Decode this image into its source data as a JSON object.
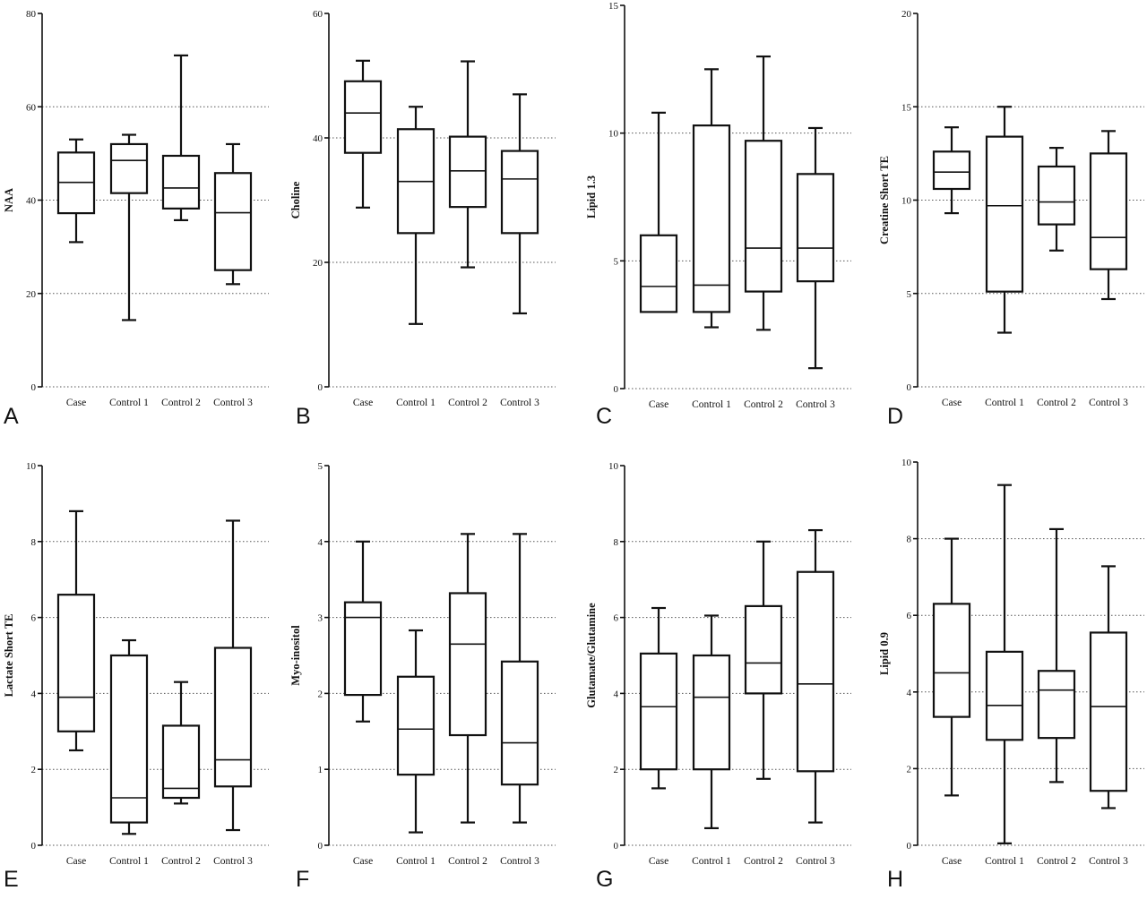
{
  "chart_data": [
    {
      "panel": "A",
      "type": "box",
      "ylabel": "NAA",
      "categories": [
        "Case",
        "Control 1",
        "Control 2",
        "Control 3"
      ],
      "ylim": [
        0,
        80
      ],
      "yticks": [
        0,
        20,
        40,
        60,
        80
      ],
      "gridlines": [
        20,
        40,
        60
      ],
      "boxes": [
        {
          "category": "Case",
          "min": 31,
          "q1": 37.2,
          "median": 43.8,
          "q3": 50.2,
          "max": 53
        },
        {
          "category": "Control 1",
          "min": 14.3,
          "q1": 41.5,
          "median": 48.5,
          "q3": 52,
          "max": 54
        },
        {
          "category": "Control 2",
          "min": 35.7,
          "q1": 38.2,
          "median": 42.6,
          "q3": 49.5,
          "max": 71
        },
        {
          "category": "Control 3",
          "min": 22,
          "q1": 25,
          "median": 37.3,
          "q3": 45.8,
          "max": 52
        }
      ]
    },
    {
      "panel": "B",
      "type": "box",
      "ylabel": "Choline",
      "categories": [
        "Case",
        "Control 1",
        "Control 2",
        "Control 3"
      ],
      "ylim": [
        0,
        60
      ],
      "yticks": [
        0,
        20,
        40,
        60
      ],
      "gridlines": [
        20,
        40
      ],
      "boxes": [
        {
          "category": "Case",
          "min": 28.8,
          "q1": 37.6,
          "median": 44,
          "q3": 49.1,
          "max": 52.4
        },
        {
          "category": "Control 1",
          "min": 10.1,
          "q1": 24.7,
          "median": 33,
          "q3": 41.4,
          "max": 45
        },
        {
          "category": "Control 2",
          "min": 19.2,
          "q1": 28.9,
          "median": 34.7,
          "q3": 40.2,
          "max": 52.3
        },
        {
          "category": "Control 3",
          "min": 11.8,
          "q1": 24.7,
          "median": 33.4,
          "q3": 37.9,
          "max": 47
        }
      ]
    },
    {
      "panel": "C",
      "type": "box",
      "ylabel": "Lipid 1.3",
      "categories": [
        "Case",
        "Control 1",
        "Control 2",
        "Control 3"
      ],
      "ylim": [
        0,
        15
      ],
      "yticks": [
        0,
        5,
        10,
        15
      ],
      "gridlines": [
        5,
        10
      ],
      "boxes": [
        {
          "category": "Case",
          "min": 3,
          "q1": 3,
          "median": 4,
          "q3": 6,
          "max": 10.8
        },
        {
          "category": "Control 1",
          "min": 2.4,
          "q1": 3,
          "median": 4.05,
          "q3": 10.3,
          "max": 12.5
        },
        {
          "category": "Control 2",
          "min": 2.3,
          "q1": 3.8,
          "median": 5.5,
          "q3": 9.7,
          "max": 13
        },
        {
          "category": "Control 3",
          "min": 0.8,
          "q1": 4.2,
          "median": 5.5,
          "q3": 8.4,
          "max": 10.2
        }
      ]
    },
    {
      "panel": "D",
      "type": "box",
      "ylabel": "Creatine Short TE",
      "categories": [
        "Case",
        "Control 1",
        "Control 2",
        "Control 3"
      ],
      "ylim": [
        0,
        20
      ],
      "yticks": [
        0,
        5,
        10,
        15,
        20
      ],
      "gridlines": [
        5,
        10,
        15
      ],
      "boxes": [
        {
          "category": "Case",
          "min": 9.3,
          "q1": 10.6,
          "median": 11.5,
          "q3": 12.6,
          "max": 13.9
        },
        {
          "category": "Control 1",
          "min": 2.9,
          "q1": 5.1,
          "median": 9.7,
          "q3": 13.4,
          "max": 15
        },
        {
          "category": "Control 2",
          "min": 7.3,
          "q1": 8.7,
          "median": 9.9,
          "q3": 11.8,
          "max": 12.8
        },
        {
          "category": "Control 3",
          "min": 4.7,
          "q1": 6.3,
          "median": 8,
          "q3": 12.5,
          "max": 13.7
        }
      ]
    },
    {
      "panel": "E",
      "type": "box",
      "ylabel": "Lactate Short TE",
      "categories": [
        "Case",
        "Control 1",
        "Control 2",
        "Control 3"
      ],
      "ylim": [
        0,
        10
      ],
      "yticks": [
        0,
        2,
        4,
        6,
        8,
        10
      ],
      "gridlines": [
        2,
        4,
        6,
        8
      ],
      "boxes": [
        {
          "category": "Case",
          "min": 2.5,
          "q1": 3,
          "median": 3.9,
          "q3": 6.6,
          "max": 8.8
        },
        {
          "category": "Control 1",
          "min": 0.3,
          "q1": 0.6,
          "median": 1.25,
          "q3": 5,
          "max": 5.4
        },
        {
          "category": "Control 2",
          "min": 1.1,
          "q1": 1.25,
          "median": 1.5,
          "q3": 3.15,
          "max": 4.3
        },
        {
          "category": "Control 3",
          "min": 0.4,
          "q1": 1.55,
          "median": 2.25,
          "q3": 5.2,
          "max": 8.55
        }
      ]
    },
    {
      "panel": "F",
      "type": "box",
      "ylabel": "Myo-inositol",
      "categories": [
        "Case",
        "Control 1",
        "Control 2",
        "Control 3"
      ],
      "ylim": [
        0,
        5
      ],
      "yticks": [
        0,
        1,
        2,
        3,
        4,
        5
      ],
      "gridlines": [
        1,
        2,
        3,
        4
      ],
      "boxes": [
        {
          "category": "Case",
          "min": 1.63,
          "q1": 1.98,
          "median": 3,
          "q3": 3.2,
          "max": 4
        },
        {
          "category": "Control 1",
          "min": 0.17,
          "q1": 0.93,
          "median": 1.53,
          "q3": 2.22,
          "max": 2.83
        },
        {
          "category": "Control 2",
          "min": 0.3,
          "q1": 1.45,
          "median": 2.65,
          "q3": 3.32,
          "max": 4.1
        },
        {
          "category": "Control 3",
          "min": 0.3,
          "q1": 0.8,
          "median": 1.35,
          "q3": 2.42,
          "max": 4.1
        }
      ]
    },
    {
      "panel": "G",
      "type": "box",
      "ylabel": "Glutamate/Glutamine",
      "categories": [
        "Case",
        "Control 1",
        "Control 2",
        "Control 3"
      ],
      "ylim": [
        0,
        10
      ],
      "yticks": [
        0,
        2,
        4,
        6,
        8,
        10
      ],
      "gridlines": [
        2,
        4,
        6,
        8
      ],
      "boxes": [
        {
          "category": "Case",
          "min": 1.5,
          "q1": 2,
          "median": 3.65,
          "q3": 5.05,
          "max": 6.25
        },
        {
          "category": "Control 1",
          "min": 0.45,
          "q1": 2,
          "median": 3.9,
          "q3": 5,
          "max": 6.05
        },
        {
          "category": "Control 2",
          "min": 1.75,
          "q1": 4,
          "median": 4.8,
          "q3": 6.3,
          "max": 8
        },
        {
          "category": "Control 3",
          "min": 0.6,
          "q1": 1.95,
          "median": 4.25,
          "q3": 7.2,
          "max": 8.3
        }
      ]
    },
    {
      "panel": "H",
      "type": "box",
      "ylabel": "Lipid 0.9",
      "categories": [
        "Case",
        "Control 1",
        "Control 2",
        "Control 3"
      ],
      "ylim": [
        0,
        10
      ],
      "yticks": [
        0,
        2,
        4,
        6,
        8,
        10
      ],
      "gridlines": [
        2,
        4,
        6,
        8
      ],
      "boxes": [
        {
          "category": "Case",
          "min": 1.3,
          "q1": 3.35,
          "median": 4.5,
          "q3": 6.3,
          "max": 8
        },
        {
          "category": "Control 1",
          "min": 0.05,
          "q1": 2.75,
          "median": 3.65,
          "q3": 5.05,
          "max": 9.4
        },
        {
          "category": "Control 2",
          "min": 1.65,
          "q1": 2.8,
          "median": 4.05,
          "q3": 4.55,
          "max": 8.25
        },
        {
          "category": "Control 3",
          "min": 0.97,
          "q1": 1.42,
          "median": 3.62,
          "q3": 5.55,
          "max": 7.28
        }
      ]
    }
  ]
}
